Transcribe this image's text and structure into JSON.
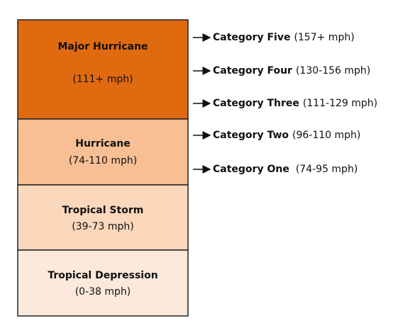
{
  "blocks": [
    {
      "title": "Major Hurricane",
      "range": "(111+ mph)"
    },
    {
      "title": "Hurricane",
      "range": "(74-110 mph)"
    },
    {
      "title": "Tropical Storm",
      "range": "(39-73 mph)"
    },
    {
      "title": "Tropical Depression",
      "range": "(0-38 mph)"
    }
  ],
  "categories": [
    {
      "name": "Category Five",
      "range": "(157+ mph)"
    },
    {
      "name": "Category Four",
      "range": "(130-156 mph)"
    },
    {
      "name": "Category Three",
      "range": "(111-129 mph)"
    },
    {
      "name": "Category Two",
      "range": "(96-110 mph)"
    },
    {
      "name": "Category One",
      "range": "(74-95 mph)"
    }
  ]
}
